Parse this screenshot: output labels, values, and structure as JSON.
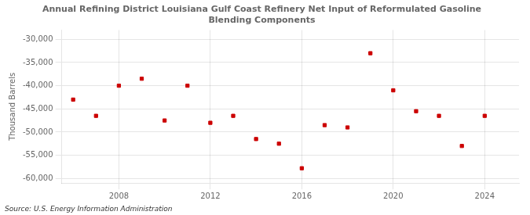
{
  "chart_data": {
    "type": "scatter",
    "title": "Annual Refining District Louisiana Gulf Coast Refinery Net Input of Reformulated Gasoline\nBlending Components",
    "ylabel": "Thousand Barrels",
    "annotation": "Source: U.S. Energy Information Administration",
    "x": [
      2006,
      2007,
      2008,
      2009,
      2010,
      2011,
      2012,
      2013,
      2014,
      2015,
      2016,
      2017,
      2018,
      2019,
      2020,
      2021,
      2022,
      2023,
      2024
    ],
    "values": [
      -43000,
      -46500,
      -40000,
      -38500,
      -47500,
      -40000,
      -48000,
      -46500,
      -51500,
      -52500,
      -57800,
      -48500,
      -49000,
      -33000,
      -41000,
      -45500,
      -46500,
      -53000,
      -46500
    ],
    "color": "#cc0000",
    "marker": "square",
    "xlim": [
      2005.5,
      2025.5
    ],
    "xticks": [
      2008,
      2012,
      2016,
      2020,
      2024
    ],
    "ylim": [
      -61000,
      -28000
    ],
    "yticks": [
      {
        "value": -30000,
        "label": "-30,000"
      },
      {
        "value": -35000,
        "label": "-35,000"
      },
      {
        "value": -40000,
        "label": "-40,000"
      },
      {
        "value": -45000,
        "label": "-45,000"
      },
      {
        "value": -50000,
        "label": "-50,000"
      },
      {
        "value": -55000,
        "label": "-55,000"
      },
      {
        "value": -60000,
        "label": "-60,000"
      }
    ],
    "grid": true
  }
}
